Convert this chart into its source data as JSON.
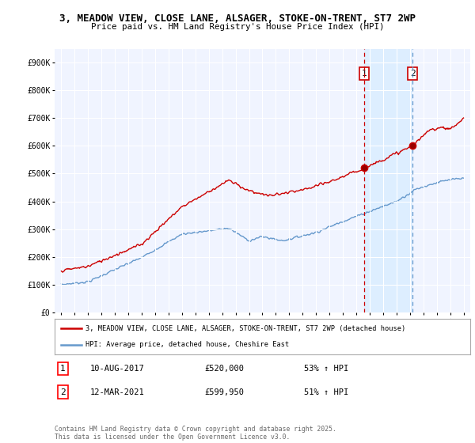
{
  "title_line1": "3, MEADOW VIEW, CLOSE LANE, ALSAGER, STOKE-ON-TRENT, ST7 2WP",
  "title_line2": "Price paid vs. HM Land Registry's House Price Index (HPI)",
  "ylabel_ticks": [
    "£0",
    "£100K",
    "£200K",
    "£300K",
    "£400K",
    "£500K",
    "£600K",
    "£700K",
    "£800K",
    "£900K"
  ],
  "ytick_values": [
    0,
    100000,
    200000,
    300000,
    400000,
    500000,
    600000,
    700000,
    800000,
    900000
  ],
  "ylim": [
    0,
    950000
  ],
  "xlim_start": 1994.5,
  "xlim_end": 2025.5,
  "legend_line1": "3, MEADOW VIEW, CLOSE LANE, ALSAGER, STOKE-ON-TRENT, ST7 2WP (detached house)",
  "legend_line2": "HPI: Average price, detached house, Cheshire East",
  "sale1_date": "10-AUG-2017",
  "sale1_price": "£520,000",
  "sale1_hpi": "53% ↑ HPI",
  "sale1_year": 2017.6,
  "sale1_value": 520000,
  "sale2_date": "12-MAR-2021",
  "sale2_price": "£599,950",
  "sale2_hpi": "51% ↑ HPI",
  "sale2_year": 2021.2,
  "sale2_value": 599950,
  "red_color": "#cc0000",
  "blue_color": "#6699cc",
  "shade_color": "#ddeeff",
  "background_color": "#f0f4ff",
  "grid_color": "#ffffff",
  "footer_text": "Contains HM Land Registry data © Crown copyright and database right 2025.\nThis data is licensed under the Open Government Licence v3.0.",
  "xtick_years": [
    1995,
    1996,
    1997,
    1998,
    1999,
    2000,
    2001,
    2002,
    2003,
    2004,
    2005,
    2006,
    2007,
    2008,
    2009,
    2010,
    2011,
    2012,
    2013,
    2014,
    2015,
    2016,
    2017,
    2018,
    2019,
    2020,
    2021,
    2022,
    2023,
    2024,
    2025
  ]
}
